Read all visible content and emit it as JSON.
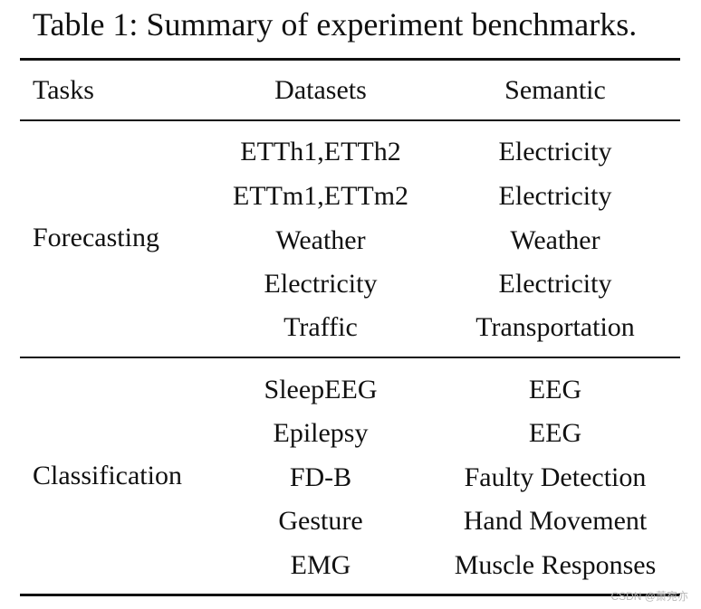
{
  "caption": "Table 1: Summary of experiment benchmarks.",
  "table": {
    "headers": {
      "tasks": "Tasks",
      "datasets": "Datasets",
      "semantic": "Semantic"
    },
    "forecasting": {
      "task": "Forecasting",
      "rows": [
        {
          "dataset": "ETTh1,ETTh2",
          "semantic": "Electricity"
        },
        {
          "dataset": "ETTm1,ETTm2",
          "semantic": "Electricity"
        },
        {
          "dataset": "Weather",
          "semantic": "Weather"
        },
        {
          "dataset": "Electricity",
          "semantic": "Electricity"
        },
        {
          "dataset": "Traffic",
          "semantic": "Transportation"
        }
      ]
    },
    "classification": {
      "task": "Classification",
      "rows": [
        {
          "dataset": "SleepEEG",
          "semantic": "EEG"
        },
        {
          "dataset": "Epilepsy",
          "semantic": "EEG"
        },
        {
          "dataset": "FD-B",
          "semantic": "Faulty Detection"
        },
        {
          "dataset": "Gesture",
          "semantic": "Hand Movement"
        },
        {
          "dataset": "EMG",
          "semantic": "Muscle Responses"
        }
      ]
    }
  },
  "watermark": "CSDN @萧宛亦"
}
